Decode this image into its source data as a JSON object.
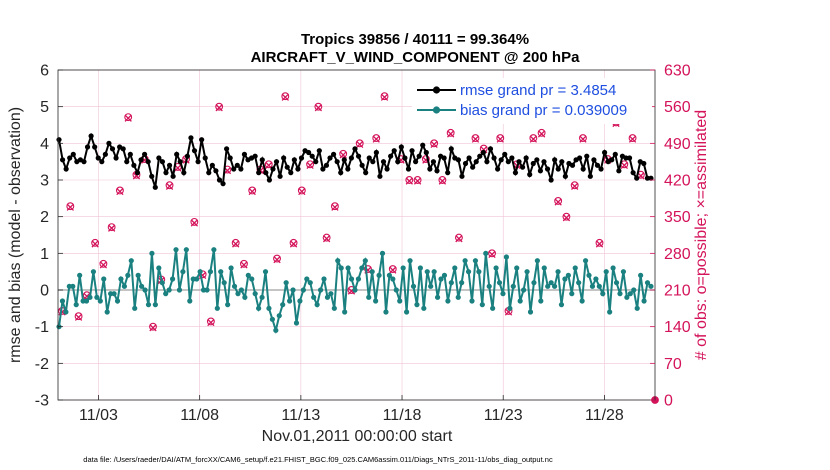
{
  "chart_data": {
    "type": "line",
    "title_line1": "Tropics 39856 / 40111 = 99.364%",
    "title_line2": "AIRCRAFT_V_WIND_COMPONENT @ 200 hPa",
    "xlabel": "Nov.01,2011 00:00:00 start",
    "ylabel": "rmse and bias (model - observation)",
    "y2label": "# of obs: o=possible; ×=assimilated",
    "footnote": "data file: /Users/raeder/DAI/ATM_forcXX/CAM6_setup/f.e21.FHIST_BGC.f09_025.CAM6assim.011/Diags_NTrS_2011-11/obs_diag_output.nc",
    "xlim": [
      1,
      30.5
    ],
    "ylim": [
      -3,
      6
    ],
    "y2lim": [
      0,
      630
    ],
    "xtick_values": [
      3,
      8,
      13,
      18,
      23,
      28
    ],
    "xtick_labels": [
      "11/03",
      "11/08",
      "11/13",
      "11/18",
      "11/23",
      "11/28"
    ],
    "ytick_labels": [
      "-3",
      "-2",
      "-1",
      "0",
      "1",
      "2",
      "3",
      "4",
      "5",
      "6"
    ],
    "y2tick_labels": [
      "0",
      "70",
      "140",
      "210",
      "280",
      "350",
      "420",
      "490",
      "560",
      "630"
    ],
    "grid": true,
    "legend_position": "top-right",
    "colors": {
      "rmse": "#000000",
      "bias": "#1a8080",
      "obs": "#d4135a",
      "zero_line": "#b0b0b0",
      "legend_text": "#1f4fe0"
    },
    "series": [
      {
        "name": "rmse grand pr = 3.4854",
        "axis": "left",
        "values": [
          4.1,
          3.55,
          3.3,
          3.6,
          3.7,
          3.5,
          3.55,
          3.5,
          3.9,
          4.2,
          3.9,
          3.6,
          3.5,
          3.7,
          4.0,
          3.85,
          3.6,
          3.9,
          3.85,
          3.5,
          3.7,
          3.4,
          3.2,
          3.55,
          3.7,
          3.5,
          3.1,
          2.8,
          3.6,
          3.5,
          3.2,
          3.4,
          3.1,
          3.7,
          3.5,
          3.2,
          3.65,
          4.15,
          3.8,
          3.5,
          4.1,
          3.6,
          3.2,
          3.4,
          3.25,
          3.0,
          2.9,
          3.85,
          3.6,
          3.3,
          3.4,
          3.3,
          3.7,
          3.55,
          3.6,
          3.65,
          3.2,
          3.55,
          3.2,
          3.0,
          3.3,
          3.5,
          3.1,
          3.6,
          3.35,
          3.2,
          3.55,
          3.3,
          3.6,
          3.8,
          3.75,
          3.65,
          3.5,
          3.8,
          3.3,
          3.4,
          3.6,
          3.7,
          3.5,
          3.2,
          3.55,
          3.3,
          3.6,
          3.85,
          3.65,
          3.4,
          3.2,
          3.6,
          3.5,
          3.75,
          3.1,
          3.5,
          3.3,
          3.65,
          3.8,
          3.5,
          3.9,
          3.6,
          3.3,
          3.8,
          3.5,
          3.65,
          3.95,
          3.75,
          3.3,
          3.5,
          3.25,
          3.65,
          3.6,
          3.2,
          3.85,
          3.6,
          3.55,
          3.1,
          3.45,
          3.6,
          3.35,
          3.5,
          3.65,
          3.75,
          3.5,
          3.85,
          3.6,
          3.3,
          3.55,
          3.7,
          3.5,
          3.6,
          3.2,
          3.5,
          3.35,
          3.6,
          3.15,
          3.45,
          3.55,
          3.25,
          3.5,
          3.3,
          3.0,
          3.55,
          3.3,
          3.5,
          3.1,
          3.45,
          3.4,
          3.55,
          3.6,
          3.3,
          3.65,
          3.1,
          3.55,
          3.4,
          3.3,
          3.75,
          3.5,
          3.55,
          3.7,
          3.25,
          3.65,
          3.6,
          3.6,
          3.2,
          3.05,
          3.5,
          3.45,
          3.05,
          3.05
        ]
      },
      {
        "name": "bias grand pr = 0.039009",
        "axis": "left",
        "values": [
          -1.0,
          -0.3,
          -0.6,
          0.1,
          0.1,
          -0.4,
          0.4,
          -0.3,
          -0.3,
          -0.2,
          0.5,
          -0.2,
          -0.3,
          0.3,
          -0.6,
          -0.1,
          -0.1,
          -0.3,
          0.3,
          0.1,
          0.4,
          0.8,
          -0.5,
          0.4,
          0.1,
          0.0,
          -0.4,
          1.0,
          -0.4,
          0.6,
          0.2,
          -0.1,
          0.0,
          0.3,
          1.1,
          0.0,
          0.5,
          1.1,
          -0.3,
          0.3,
          0.3,
          0.5,
          0.0,
          0.0,
          0.5,
          1.1,
          -0.5,
          0.5,
          0.2,
          -0.4,
          0.6,
          0.1,
          -0.1,
          0.0,
          -0.2,
          0.4,
          0.3,
          -0.1,
          -0.5,
          -0.2,
          0.5,
          -0.5,
          -0.8,
          -1.1,
          -0.7,
          -0.4,
          0.2,
          -0.3,
          0.0,
          -0.9,
          -0.3,
          0.0,
          0.3,
          0.2,
          -0.2,
          -0.4,
          0.0,
          0.3,
          -0.2,
          -0.1,
          -0.5,
          0.8,
          0.6,
          -0.6,
          0.6,
          0.3,
          0.0,
          0.3,
          0.6,
          0.8,
          -0.2,
          0.5,
          -0.3,
          0.4,
          1.0,
          -0.6,
          0.4,
          0.3,
          0.0,
          -0.3,
          0.6,
          -0.6,
          0.8,
          0.1,
          -0.4,
          0.6,
          -0.5,
          0.5,
          0.1,
          0.5,
          -0.2,
          0.3,
          0.4,
          -0.3,
          0.2,
          0.6,
          -0.2,
          0.2,
          0.8,
          0.5,
          -0.3,
          0.8,
          0.5,
          -0.4,
          1.0,
          0.1,
          -0.5,
          0.6,
          0.2,
          -0.1,
          0.9,
          -0.5,
          0.1,
          0.6,
          -0.3,
          0.0,
          0.5,
          -0.6,
          0.2,
          0.8,
          -0.3,
          0.6,
          0.1,
          0.2,
          0.1,
          0.5,
          -0.4,
          0.3,
          0.4,
          -0.1,
          0.6,
          0.2,
          -0.3,
          0.8,
          0.4,
          0.1,
          0.3,
          0.1,
          -0.1,
          0.5,
          -0.6,
          0.6,
          0.2,
          -0.1,
          0.5,
          -0.2,
          -0.1,
          0.0,
          -0.5,
          0.4,
          -0.3,
          0.2,
          0.1
        ]
      }
    ],
    "obs_possible": [
      170,
      370,
      160,
      200,
      300,
      260,
      330,
      400,
      540,
      430,
      460,
      140,
      230,
      410,
      445,
      460,
      340,
      240,
      150,
      560,
      440,
      300,
      260,
      400,
      440,
      450,
      270,
      580,
      300,
      400,
      450,
      560,
      310,
      370,
      470,
      210,
      490,
      250,
      500,
      580,
      250,
      460,
      420,
      420,
      460,
      490,
      420,
      510,
      310,
      600,
      500,
      480,
      280,
      500,
      170,
      450,
      550,
      500,
      510,
      550,
      380,
      350,
      410,
      500,
      590,
      300,
      460,
      530,
      450,
      500,
      430
    ],
    "obs_assimilated": [
      168,
      368,
      158,
      198,
      298,
      258,
      328,
      398,
      538,
      428,
      458,
      138,
      228,
      408,
      443,
      458,
      338,
      238,
      148,
      558,
      438,
      298,
      258,
      398,
      438,
      448,
      268,
      578,
      298,
      398,
      448,
      558,
      308,
      368,
      468,
      208,
      488,
      248,
      498,
      578,
      248,
      458,
      418,
      418,
      458,
      488,
      418,
      508,
      308,
      598,
      498,
      478,
      278,
      498,
      168,
      448,
      548,
      498,
      508,
      548,
      378,
      348,
      408,
      498,
      588,
      298,
      458,
      528,
      448,
      498,
      428
    ],
    "legend": [
      {
        "label": "rmse grand pr = 3.4854",
        "color": "#000000"
      },
      {
        "label": "bias grand pr = 0.039009",
        "color": "#1a8080"
      }
    ]
  }
}
